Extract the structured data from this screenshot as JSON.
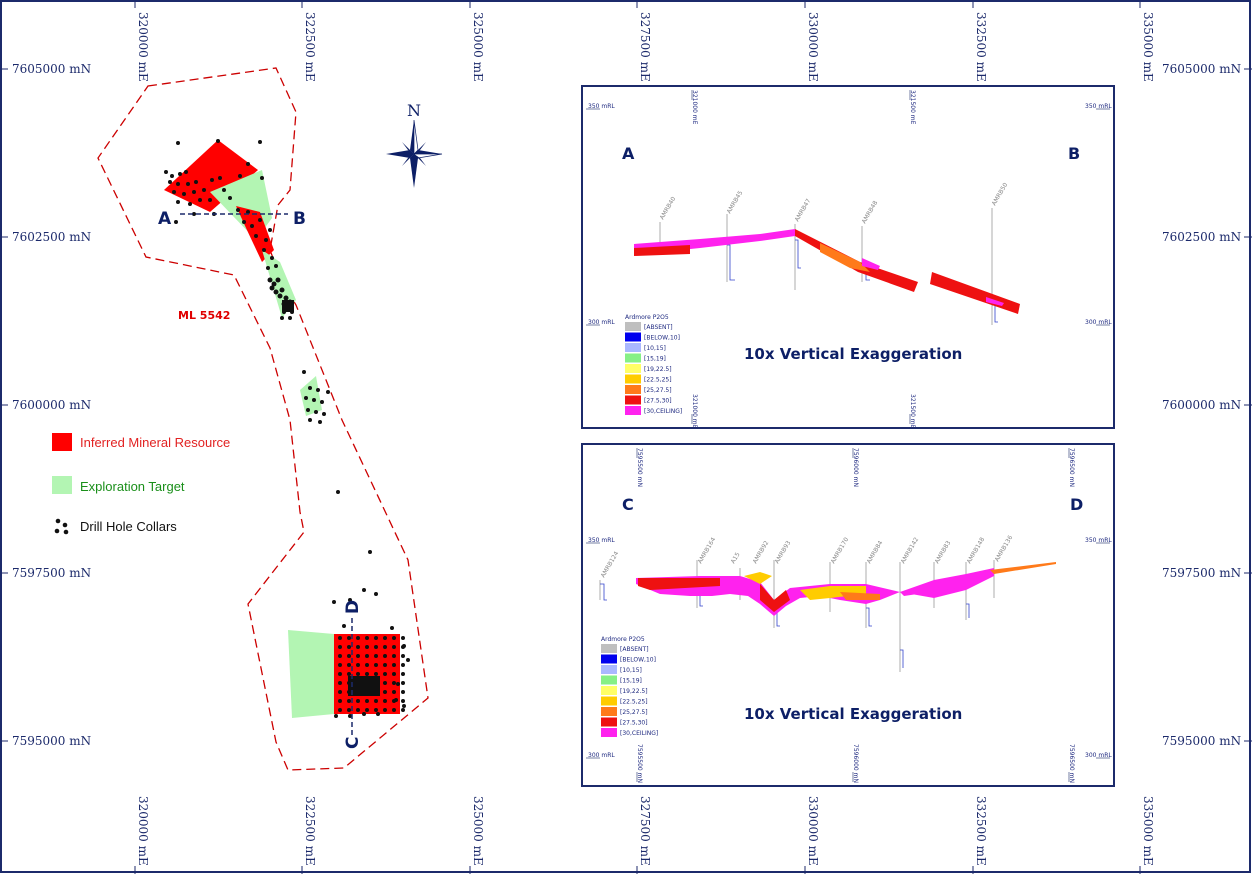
{
  "map": {
    "easting_labels": [
      "320000 mE",
      "322500 mE",
      "325000 mE",
      "327500 mE",
      "330000 mE",
      "332500 mE",
      "335000 mE"
    ],
    "northing_labels": [
      "7605000 mN",
      "7602500 mN",
      "7600000 mN",
      "7597500 mN",
      "7595000 mN"
    ],
    "north_arrow": "N",
    "lease_label": "ML 5542",
    "section_ab": {
      "start": "A",
      "end": "B"
    },
    "section_cd": {
      "start": "C",
      "end": "D"
    },
    "colors": {
      "inferred": "#ff0000",
      "exploration": "#b3f5b3",
      "lease": "#cc0000",
      "frame": "#1c2a6b"
    }
  },
  "legend": {
    "inferred_label": "Inferred Mineral Resource",
    "exploration_label": "Exploration Target",
    "collars_label": "Drill Hole Collars"
  },
  "panel_ab": {
    "left": "A",
    "right": "B",
    "exaggeration": "10x Vertical Exaggeration",
    "rl_top": "350 mRL",
    "rl_bottom": "300 mRL",
    "top_coords": [
      "321000 mE",
      "321500 mE"
    ],
    "holes": [
      "AMRB40",
      "AMRB45",
      "AMRB47",
      "AMRB48",
      "AMRB50"
    ],
    "legend_title": "Ardmore P2O5",
    "legend_items": [
      {
        "label": "[ABSENT]",
        "color": "#bfbfbf"
      },
      {
        "label": "[BELOW,10]",
        "color": "#0000ee"
      },
      {
        "label": "[10,15]",
        "color": "#aab8ff"
      },
      {
        "label": "[15,19]",
        "color": "#86f086"
      },
      {
        "label": "[19,22.5]",
        "color": "#ffff66"
      },
      {
        "label": "[22.5,25]",
        "color": "#ffcc00"
      },
      {
        "label": "[25,27.5]",
        "color": "#ff7a1a"
      },
      {
        "label": "[27.5,30]",
        "color": "#ee1111"
      },
      {
        "label": "[30,CEILING]",
        "color": "#ff22ee"
      }
    ]
  },
  "panel_cd": {
    "left": "C",
    "right": "D",
    "exaggeration": "10x Vertical Exaggeration",
    "rl_top": "350 mRL",
    "rl_bottom": "300 mRL",
    "top_coords": [
      "7595500 mN",
      "7596000 mN",
      "7596500 mN"
    ],
    "holes": [
      "AMRB124",
      "AMRB164",
      "A15",
      "AMRB92",
      "AMRB93",
      "AMRB170",
      "AMRB84",
      "AMRB142",
      "AMRB83",
      "AMRB148",
      "AMRB136"
    ],
    "legend_title": "Ardmore P2O5",
    "legend_items": [
      {
        "label": "[ABSENT]",
        "color": "#bfbfbf"
      },
      {
        "label": "[BELOW,10]",
        "color": "#0000ee"
      },
      {
        "label": "[10,15]",
        "color": "#aab8ff"
      },
      {
        "label": "[15,19]",
        "color": "#86f086"
      },
      {
        "label": "[19,22.5]",
        "color": "#ffff66"
      },
      {
        "label": "[22.5,25]",
        "color": "#ffcc00"
      },
      {
        "label": "[25,27.5]",
        "color": "#ff7a1a"
      },
      {
        "label": "[27.5,30]",
        "color": "#ee1111"
      },
      {
        "label": "[30,CEILING]",
        "color": "#ff22ee"
      }
    ]
  }
}
